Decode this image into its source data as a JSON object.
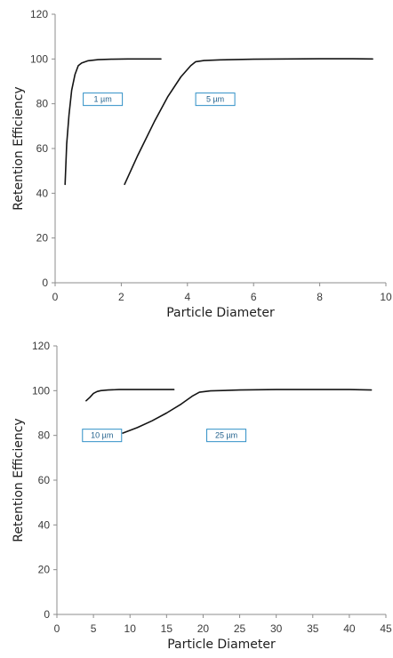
{
  "chart_data": [
    {
      "type": "line",
      "xlabel": "Particle Diameter",
      "ylabel": "Retention Efficiency",
      "xlim": [
        0,
        10
      ],
      "ylim": [
        0,
        120
      ],
      "xticks": [
        "0",
        "2",
        "4",
        "6",
        "8",
        "10"
      ],
      "yticks": [
        "0",
        "20",
        "40",
        "60",
        "80",
        "100",
        "120"
      ],
      "grid": false,
      "series": [
        {
          "name": "1 µm",
          "x": [
            0.3,
            0.35,
            0.42,
            0.5,
            0.6,
            0.7,
            0.8,
            1.0,
            1.3,
            1.7,
            2.2,
            3.2
          ],
          "y": [
            44,
            62,
            75,
            86,
            93,
            97,
            98.2,
            99.2,
            99.7,
            99.9,
            100,
            100
          ]
        },
        {
          "name": "5 µm",
          "x": [
            2.1,
            2.5,
            3.0,
            3.4,
            3.8,
            4.1,
            4.25,
            4.5,
            5.0,
            6.0,
            7.0,
            8.0,
            9.0,
            9.6
          ],
          "y": [
            44,
            57,
            72,
            83,
            92,
            97,
            98.8,
            99.3,
            99.6,
            99.9,
            100,
            100.1,
            100.1,
            100
          ]
        }
      ],
      "annotations": [
        "1 µm",
        "5 µm"
      ]
    },
    {
      "type": "line",
      "xlabel": "Particle Diameter",
      "ylabel": "Retention Efficiency",
      "xlim": [
        0,
        45
      ],
      "ylim": [
        0,
        120
      ],
      "xticks": [
        "0",
        "5",
        "10",
        "15",
        "20",
        "25",
        "30",
        "35",
        "40",
        "45"
      ],
      "yticks": [
        "0",
        "20",
        "40",
        "60",
        "80",
        "100",
        "120"
      ],
      "grid": false,
      "series": [
        {
          "name": "10 µm",
          "x": [
            4.0,
            4.5,
            5.0,
            5.5,
            6.0,
            7.0,
            8.5,
            10,
            12,
            14,
            16
          ],
          "y": [
            95.5,
            97,
            98.8,
            99.6,
            100,
            100.3,
            100.5,
            100.5,
            100.5,
            100.5,
            100.5
          ]
        },
        {
          "name": "25 µm",
          "x": [
            9.0,
            11,
            13,
            15,
            17,
            18.5,
            19.5,
            21,
            25,
            30,
            35,
            40,
            43
          ],
          "y": [
            81,
            83.5,
            86.5,
            90,
            94,
            97.5,
            99.3,
            99.9,
            100.3,
            100.5,
            100.5,
            100.5,
            100.3
          ]
        }
      ],
      "annotations": [
        "10 µm",
        "25 µm"
      ]
    }
  ],
  "colors": {
    "line": "#141414",
    "axis": "#8c8c8c",
    "tag_border": "#2f8fc6",
    "tag_text": "#1f5f8b"
  }
}
